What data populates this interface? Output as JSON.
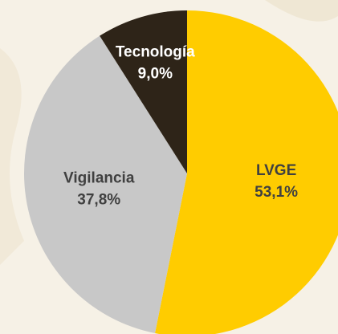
{
  "chart_data": {
    "type": "pie",
    "categories": [
      "LVGE",
      "Vigilancia",
      "Tecnología"
    ],
    "values": [
      53.1,
      37.8,
      9.0
    ],
    "value_labels": [
      "53,1%",
      "37,8%",
      "9,0%"
    ],
    "colors": [
      "#FFCC00",
      "#C8C8C8",
      "#2E2418"
    ],
    "start_angle": 90,
    "direction": "clockwise"
  }
}
